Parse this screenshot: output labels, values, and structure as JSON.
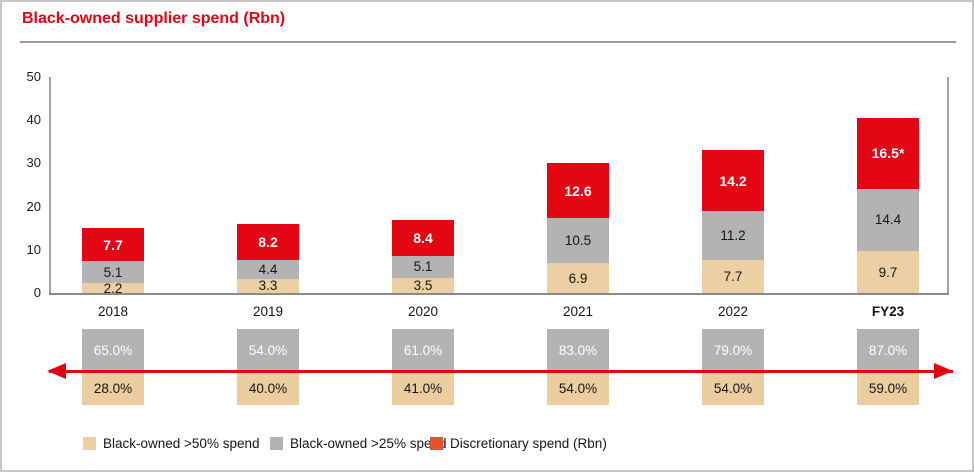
{
  "title": "Black-owned supplier spend (Rbn)",
  "colors": {
    "title_red": "#e30613",
    "bar_red": "#e30613",
    "bar_gray": "#b3b3b3",
    "bar_tan": "#ecd0a4",
    "box_gray": "#b3b3b3",
    "box_tan": "#eccda0",
    "arrow_red": "#e30613",
    "axis_gray": "#a3a3a3",
    "baseline_gray": "#8a8a8a",
    "legend_discretionary_red": "#e8502d"
  },
  "chart_data": {
    "type": "bar",
    "stacked": true,
    "title": "Black-owned supplier spend (Rbn)",
    "categories": [
      "2018",
      "2019",
      "2020",
      "2021",
      "2022",
      "FY23"
    ],
    "bold_category": "FY23",
    "ylim": [
      0,
      50
    ],
    "yticks": [
      0,
      10,
      20,
      30,
      40,
      50
    ],
    "grid": false,
    "legend_position": "bottom",
    "series": [
      {
        "name": "Black-owned >50% spend",
        "color": "#ecd0a4",
        "values": [
          2.2,
          3.3,
          3.5,
          6.9,
          7.7,
          9.7
        ],
        "labels": [
          "2.2",
          "3.3",
          "3.5",
          "6.9",
          "7.7",
          "9.7"
        ]
      },
      {
        "name": "Black-owned >25% spend",
        "color": "#b3b3b3",
        "values": [
          5.1,
          4.4,
          5.1,
          10.5,
          11.2,
          14.4
        ],
        "labels": [
          "5.1",
          "4.4",
          "5.1",
          "10.5",
          "11.2",
          "14.4"
        ]
      },
      {
        "name": "Discretionary spend (Rbn)",
        "color": "#e30613",
        "values": [
          7.7,
          8.2,
          8.4,
          12.6,
          14.2,
          16.5
        ],
        "labels": [
          "7.7",
          "8.2",
          "8.4",
          "12.6",
          "14.2",
          "16.5*"
        ]
      }
    ],
    "percent_annotations": {
      "black_owned_gt25_spend_pct": [
        "65.0%",
        "54.0%",
        "61.0%",
        "83.0%",
        "79.0%",
        "87.0%"
      ],
      "black_owned_gt50_spend_pct": [
        "28.0%",
        "40.0%",
        "41.0%",
        "54.0%",
        "54.0%",
        "59.0%"
      ]
    },
    "legend": [
      {
        "label": "Black-owned >50% spend",
        "color": "#ecd0a4"
      },
      {
        "label": "Black-owned >25% spend",
        "color": "#b3b3b3"
      },
      {
        "label": "Discretionary spend (Rbn)",
        "color": "#e8502d"
      }
    ]
  }
}
